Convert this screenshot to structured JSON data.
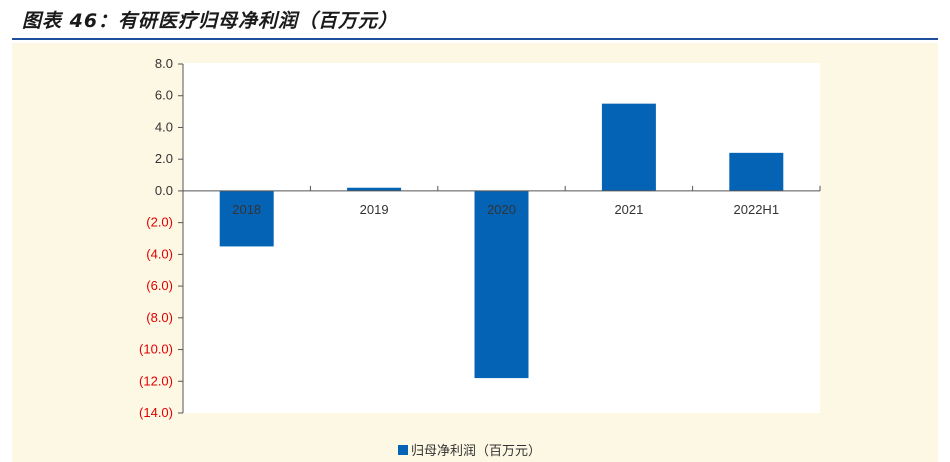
{
  "header": {
    "title": "图表 46：有研医疗归母净利润（百万元）"
  },
  "colors": {
    "bar": "#0563b5",
    "negative_tick": "#e00000",
    "positive_tick": "#333333",
    "panel_bg": "#fdf8e4",
    "title_rule": "#1f4e9c"
  },
  "chart_data": {
    "type": "bar",
    "categories": [
      "2018",
      "2019",
      "2020",
      "2021",
      "2022H1"
    ],
    "series": [
      {
        "name": "归母净利润（百万元）",
        "values": [
          -3.5,
          0.2,
          -11.8,
          5.5,
          2.4
        ]
      }
    ],
    "ylim": [
      -14,
      8
    ],
    "yticks": [
      8,
      6,
      4,
      2,
      0,
      -2,
      -4,
      -6,
      -8,
      -10,
      -12,
      -14
    ],
    "ytick_labels": [
      "8.0",
      "6.0",
      "4.0",
      "2.0",
      "0.0",
      "(2.0)",
      "(4.0)",
      "(6.0)",
      "(8.0)",
      "(10.0)",
      "(12.0)",
      "(14.0)"
    ],
    "legend": "bottom-center",
    "grid": false
  }
}
